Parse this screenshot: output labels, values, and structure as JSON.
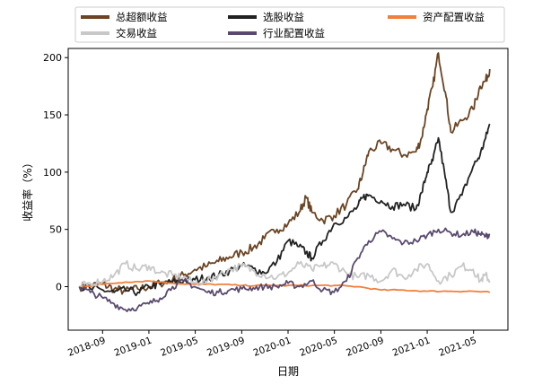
{
  "chart_data": {
    "type": "line",
    "title": "",
    "xlabel": "日期",
    "ylabel": "收益率（%）",
    "xlim": [
      2018.42,
      2021.58
    ],
    "ylim": [
      -38,
      208
    ],
    "yticks": [
      0,
      50,
      100,
      150,
      200
    ],
    "xticks": [
      {
        "label": "2018-09",
        "x": 2018.667
      },
      {
        "label": "2019-01",
        "x": 2019.0
      },
      {
        "label": "2019-05",
        "x": 2019.333
      },
      {
        "label": "2019-09",
        "x": 2019.667
      },
      {
        "label": "2020-01",
        "x": 2020.0
      },
      {
        "label": "2020-05",
        "x": 2020.333
      },
      {
        "label": "2020-09",
        "x": 2020.667
      },
      {
        "label": "2021-01",
        "x": 2021.0
      },
      {
        "label": "2021-05",
        "x": 2021.333
      }
    ],
    "grid": false,
    "legend": {
      "position": "top-outside",
      "columns": 3
    },
    "series": [
      {
        "name": "总超额收益",
        "color": "#6b4423",
        "x": [
          2018.5,
          2018.58,
          2018.67,
          2018.75,
          2018.83,
          2018.92,
          2019.0,
          2019.08,
          2019.17,
          2019.25,
          2019.33,
          2019.42,
          2019.5,
          2019.58,
          2019.67,
          2019.75,
          2019.83,
          2019.92,
          2020.0,
          2020.08,
          2020.13,
          2020.17,
          2020.25,
          2020.33,
          2020.42,
          2020.5,
          2020.54,
          2020.58,
          2020.67,
          2020.75,
          2020.83,
          2020.92,
          2020.96,
          2021.0,
          2021.04,
          2021.08,
          2021.13,
          2021.17,
          2021.25,
          2021.33,
          2021.38,
          2021.42,
          2021.45
        ],
        "values": [
          0,
          1,
          2,
          -2,
          -4,
          -2,
          0,
          3,
          6,
          10,
          15,
          18,
          22,
          26,
          30,
          34,
          42,
          50,
          55,
          65,
          78,
          65,
          58,
          62,
          72,
          85,
          100,
          118,
          125,
          120,
          115,
          118,
          130,
          155,
          175,
          204,
          170,
          135,
          145,
          155,
          175,
          180,
          190
        ]
      },
      {
        "name": "选股收益",
        "color": "#222222",
        "x": [
          2018.5,
          2018.58,
          2018.67,
          2018.75,
          2018.83,
          2018.92,
          2019.0,
          2019.08,
          2019.17,
          2019.25,
          2019.33,
          2019.42,
          2019.5,
          2019.58,
          2019.67,
          2019.75,
          2019.83,
          2019.92,
          2020.0,
          2020.08,
          2020.13,
          2020.17,
          2020.25,
          2020.33,
          2020.42,
          2020.5,
          2020.54,
          2020.58,
          2020.67,
          2020.75,
          2020.83,
          2020.92,
          2020.96,
          2021.0,
          2021.04,
          2021.08,
          2021.13,
          2021.17,
          2021.25,
          2021.33,
          2021.38,
          2021.42,
          2021.45
        ],
        "values": [
          0,
          -2,
          -3,
          -5,
          -3,
          -5,
          0,
          2,
          4,
          5,
          6,
          8,
          10,
          14,
          18,
          16,
          12,
          22,
          40,
          35,
          30,
          25,
          40,
          55,
          60,
          70,
          78,
          80,
          75,
          70,
          72,
          68,
          82,
          100,
          110,
          130,
          95,
          65,
          80,
          105,
          115,
          130,
          142
        ]
      },
      {
        "name": "资产配置收益",
        "color": "#f0803c",
        "x": [
          2018.5,
          2018.67,
          2018.83,
          2019.0,
          2019.17,
          2019.33,
          2019.5,
          2019.67,
          2019.83,
          2020.0,
          2020.17,
          2020.33,
          2020.5,
          2020.67,
          2020.83,
          2021.0,
          2021.17,
          2021.33,
          2021.45
        ],
        "values": [
          0,
          2,
          4,
          5,
          3,
          2,
          2,
          1,
          1,
          1,
          1,
          1,
          0,
          -3,
          -3,
          -4,
          -4,
          -4,
          -5
        ]
      },
      {
        "name": "交易收益",
        "color": "#c8c8c8",
        "x": [
          2018.5,
          2018.58,
          2018.67,
          2018.75,
          2018.83,
          2018.92,
          2019.0,
          2019.08,
          2019.17,
          2019.25,
          2019.33,
          2019.42,
          2019.5,
          2019.58,
          2019.67,
          2019.75,
          2019.83,
          2019.92,
          2020.0,
          2020.08,
          2020.17,
          2020.25,
          2020.33,
          2020.42,
          2020.5,
          2020.58,
          2020.67,
          2020.75,
          2020.83,
          2020.92,
          2021.0,
          2021.08,
          2021.17,
          2021.25,
          2021.33,
          2021.38,
          2021.42,
          2021.45
        ],
        "values": [
          0,
          3,
          5,
          10,
          20,
          15,
          18,
          12,
          10,
          8,
          3,
          5,
          10,
          15,
          18,
          14,
          10,
          8,
          12,
          20,
          15,
          18,
          20,
          12,
          8,
          10,
          5,
          15,
          8,
          15,
          20,
          5,
          10,
          18,
          15,
          5,
          10,
          5
        ]
      },
      {
        "name": "行业配置收益",
        "color": "#5a4a6e",
        "x": [
          2018.5,
          2018.58,
          2018.67,
          2018.75,
          2018.83,
          2018.92,
          2019.0,
          2019.08,
          2019.17,
          2019.25,
          2019.33,
          2019.42,
          2019.5,
          2019.58,
          2019.67,
          2019.75,
          2019.83,
          2019.92,
          2020.0,
          2020.08,
          2020.17,
          2020.25,
          2020.33,
          2020.42,
          2020.5,
          2020.58,
          2020.67,
          2020.75,
          2020.83,
          2020.92,
          2021.0,
          2021.08,
          2021.17,
          2021.25,
          2021.33,
          2021.38,
          2021.42,
          2021.45
        ],
        "values": [
          0,
          -5,
          -10,
          -15,
          -20,
          -18,
          -15,
          -10,
          0,
          5,
          0,
          -5,
          -5,
          -3,
          -2,
          -1,
          0,
          0,
          3,
          0,
          5,
          -3,
          -5,
          5,
          25,
          40,
          48,
          42,
          38,
          40,
          45,
          50,
          47,
          45,
          48,
          46,
          44,
          46
        ]
      }
    ]
  }
}
